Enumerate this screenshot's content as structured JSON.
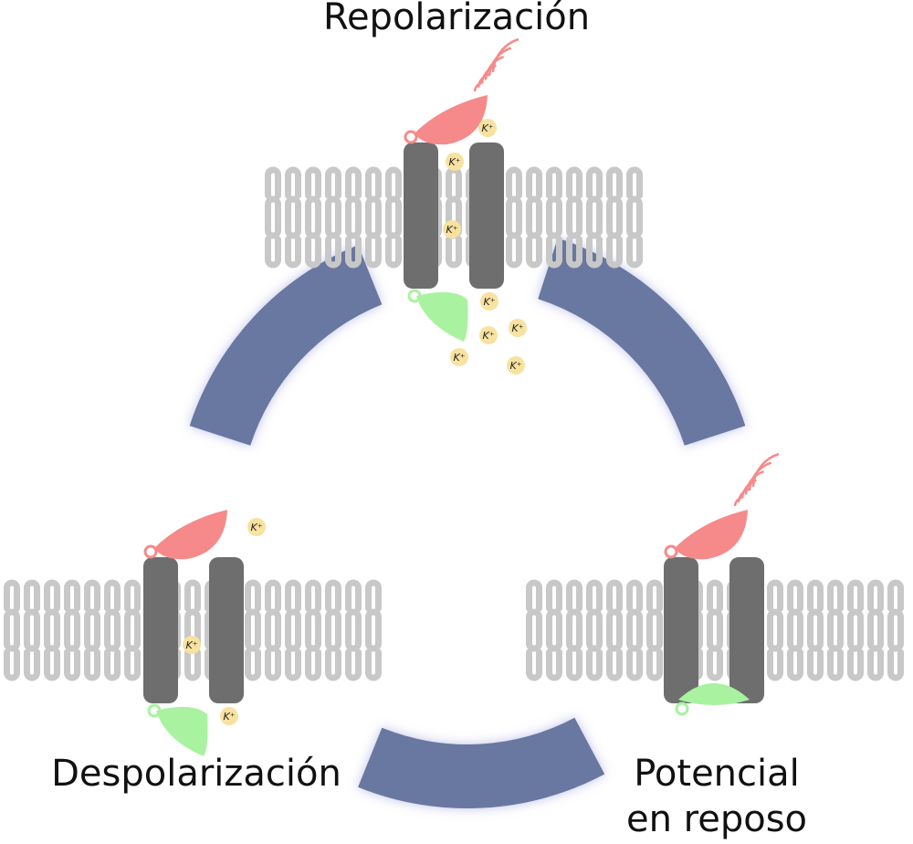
{
  "stages": {
    "repolarization": {
      "label": "Repolarización"
    },
    "depolarization": {
      "label": "Despolarización"
    },
    "resting": {
      "label_line1": "Potencial",
      "label_line2": "en reposo"
    }
  },
  "ion_label": "K⁺",
  "colors": {
    "lipid": "#c8c8c8",
    "channel": "#6e6e6e",
    "activation_gate": "#f68a8a",
    "inactivation_gate": "#a8f2a0",
    "ion": "#f8e2a0",
    "cycle_arrow": "#6978a0"
  }
}
